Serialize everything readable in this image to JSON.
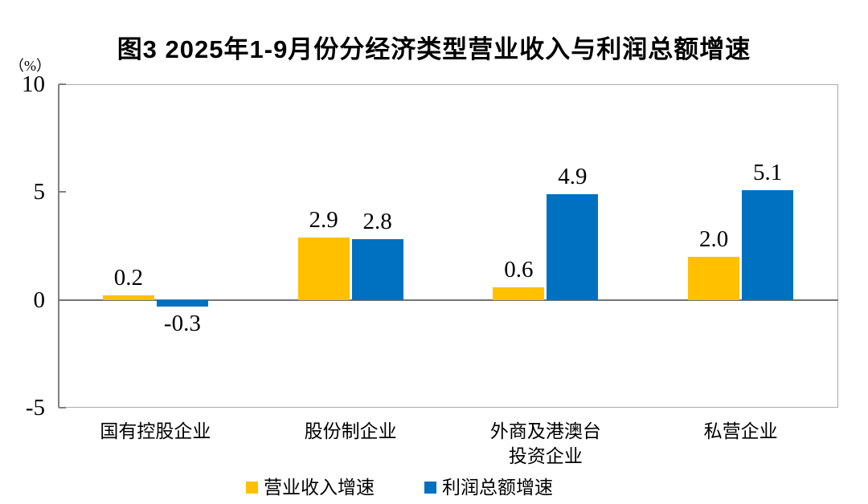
{
  "title": "图3 2025年1-9月份分经济类型营业收入与利润总额增速",
  "unit_label": "（%）",
  "colors": {
    "revenue_series": "#FFC000",
    "profit_series": "#0070C0",
    "frame": "#ABABAB",
    "axis": "#808080",
    "zero_line": "#737373",
    "text": "#000000"
  },
  "chart_data": {
    "type": "bar",
    "title": "图3 2025年1-9月份分经济类型营业收入与利润总额增速",
    "ylabel": "（%）",
    "categories": [
      "国有控股企业",
      "股份制企业",
      "外商及港澳台\n投资企业",
      "私营企业"
    ],
    "series": [
      {
        "name": "营业收入增速",
        "color": "#FFC000",
        "values": [
          0.2,
          2.9,
          0.6,
          2.0
        ]
      },
      {
        "name": "利润总额增速",
        "color": "#0070C0",
        "values": [
          -0.3,
          2.8,
          4.9,
          5.1
        ]
      }
    ],
    "data_labels": [
      [
        "0.2",
        "2.9",
        "0.6",
        "2.0"
      ],
      [
        "-0.3",
        "2.8",
        "4.9",
        "5.1"
      ]
    ],
    "ylim": [
      -5,
      10
    ],
    "yticks": [
      10,
      5,
      0,
      -5
    ],
    "grid": false,
    "legend_position": "bottom"
  }
}
